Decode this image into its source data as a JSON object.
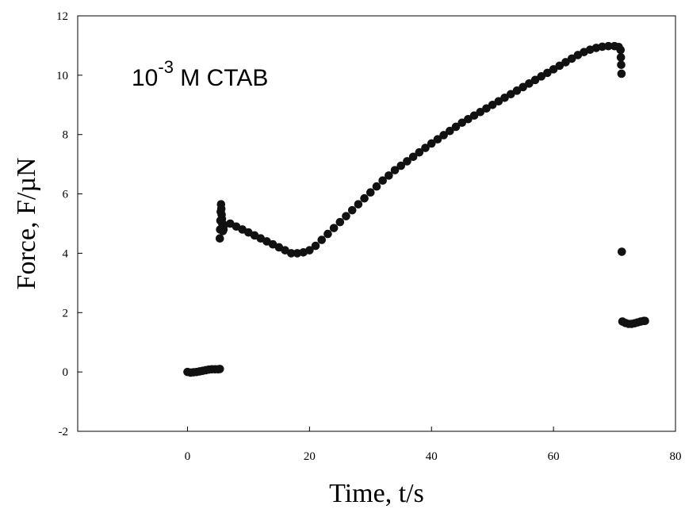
{
  "chart_data": {
    "type": "scatter",
    "title": "",
    "xlabel": "Time, t/s",
    "ylabel": "Force, F/µN",
    "xlim": [
      -18,
      80
    ],
    "ylim": [
      -2,
      12
    ],
    "x_ticks": [
      0,
      20,
      40,
      60,
      80
    ],
    "y_ticks": [
      -2,
      0,
      2,
      4,
      6,
      8,
      10,
      12
    ],
    "x_tick_labels": [
      "0",
      "20",
      "40",
      "60",
      "80"
    ],
    "y_tick_labels": [
      "-2",
      "0",
      "2",
      "4",
      "6",
      "8",
      "10",
      "12"
    ],
    "grid": false,
    "marker_color": "#111111",
    "annotation": {
      "base": "10",
      "exponent": "-3",
      "suffix": " M CTAB"
    },
    "series": [
      {
        "points": [
          [
            0.0,
            0.0
          ],
          [
            0.5,
            -0.02
          ],
          [
            1.0,
            -0.01
          ],
          [
            1.5,
            0.0
          ],
          [
            2.0,
            0.02
          ],
          [
            2.5,
            0.04
          ],
          [
            3.0,
            0.06
          ],
          [
            3.5,
            0.08
          ],
          [
            4.0,
            0.09
          ],
          [
            4.5,
            0.09
          ],
          [
            5.0,
            0.09
          ],
          [
            5.3,
            0.1
          ],
          [
            5.3,
            4.5
          ],
          [
            5.35,
            4.8
          ],
          [
            5.4,
            5.1
          ],
          [
            5.45,
            5.4
          ],
          [
            5.5,
            5.65
          ],
          [
            5.55,
            5.5
          ],
          [
            5.6,
            5.3
          ],
          [
            5.65,
            5.15
          ],
          [
            5.7,
            5.0
          ],
          [
            5.75,
            4.85
          ],
          [
            5.8,
            4.75
          ],
          [
            5.9,
            4.8
          ],
          [
            6.0,
            4.95
          ],
          [
            7.0,
            5.0
          ],
          [
            8.0,
            4.9
          ],
          [
            9.0,
            4.8
          ],
          [
            10.0,
            4.7
          ],
          [
            11.0,
            4.6
          ],
          [
            12.0,
            4.5
          ],
          [
            13.0,
            4.4
          ],
          [
            14.0,
            4.3
          ],
          [
            15.0,
            4.2
          ],
          [
            16.0,
            4.1
          ],
          [
            17.0,
            4.0
          ],
          [
            18.0,
            4.0
          ],
          [
            19.0,
            4.03
          ],
          [
            20.0,
            4.1
          ],
          [
            21.0,
            4.25
          ],
          [
            22.0,
            4.45
          ],
          [
            23.0,
            4.65
          ],
          [
            24.0,
            4.85
          ],
          [
            25.0,
            5.05
          ],
          [
            26.0,
            5.25
          ],
          [
            27.0,
            5.45
          ],
          [
            28.0,
            5.65
          ],
          [
            29.0,
            5.85
          ],
          [
            30.0,
            6.05
          ],
          [
            31.0,
            6.25
          ],
          [
            32.0,
            6.45
          ],
          [
            33.0,
            6.62
          ],
          [
            34.0,
            6.8
          ],
          [
            35.0,
            6.95
          ],
          [
            36.0,
            7.1
          ],
          [
            37.0,
            7.25
          ],
          [
            38.0,
            7.4
          ],
          [
            39.0,
            7.55
          ],
          [
            40.0,
            7.7
          ],
          [
            41.0,
            7.84
          ],
          [
            42.0,
            7.98
          ],
          [
            43.0,
            8.12
          ],
          [
            44.0,
            8.26
          ],
          [
            45.0,
            8.4
          ],
          [
            46.0,
            8.52
          ],
          [
            47.0,
            8.64
          ],
          [
            48.0,
            8.76
          ],
          [
            49.0,
            8.88
          ],
          [
            50.0,
            9.0
          ],
          [
            51.0,
            9.12
          ],
          [
            52.0,
            9.24
          ],
          [
            53.0,
            9.36
          ],
          [
            54.0,
            9.48
          ],
          [
            55.0,
            9.6
          ],
          [
            56.0,
            9.72
          ],
          [
            57.0,
            9.84
          ],
          [
            58.0,
            9.96
          ],
          [
            59.0,
            10.08
          ],
          [
            60.0,
            10.2
          ],
          [
            61.0,
            10.32
          ],
          [
            62.0,
            10.44
          ],
          [
            63.0,
            10.56
          ],
          [
            64.0,
            10.68
          ],
          [
            65.0,
            10.78
          ],
          [
            66.0,
            10.86
          ],
          [
            67.0,
            10.92
          ],
          [
            68.0,
            10.96
          ],
          [
            69.0,
            10.98
          ],
          [
            70.0,
            10.98
          ],
          [
            70.7,
            10.95
          ],
          [
            71.0,
            10.85
          ],
          [
            71.05,
            10.6
          ],
          [
            71.1,
            10.35
          ],
          [
            71.15,
            10.05
          ],
          [
            71.2,
            4.05
          ],
          [
            71.3,
            1.7
          ],
          [
            71.8,
            1.65
          ],
          [
            72.3,
            1.62
          ],
          [
            72.8,
            1.62
          ],
          [
            73.3,
            1.64
          ],
          [
            73.8,
            1.67
          ],
          [
            74.3,
            1.7
          ],
          [
            74.8,
            1.72
          ],
          [
            75.0,
            1.72
          ]
        ]
      }
    ]
  }
}
